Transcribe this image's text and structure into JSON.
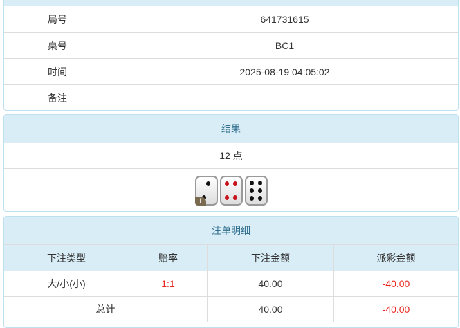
{
  "info": {
    "rows": [
      {
        "label": "局号",
        "value": "641731615"
      },
      {
        "label": "桌号",
        "value": "BC1"
      },
      {
        "label": "时间",
        "value": "2025-08-19 04:05:02"
      },
      {
        "label": "备注",
        "value": ""
      }
    ]
  },
  "result": {
    "title": "结果",
    "points": "12 点",
    "dice": [
      2,
      4,
      6
    ],
    "info_badge": "i"
  },
  "bets": {
    "title": "注单明细",
    "columns": [
      "下注类型",
      "赔率",
      "下注金额",
      "派彩金额"
    ],
    "rows": [
      {
        "type": "大/小(小)",
        "odds": "1:1",
        "amount": "40.00",
        "payout": "-40.00"
      }
    ],
    "total": {
      "label": "总计",
      "amount": "40.00",
      "payout": "-40.00"
    }
  },
  "colors": {
    "header_bg": "#d9edf7",
    "negative": "#e8261f"
  }
}
